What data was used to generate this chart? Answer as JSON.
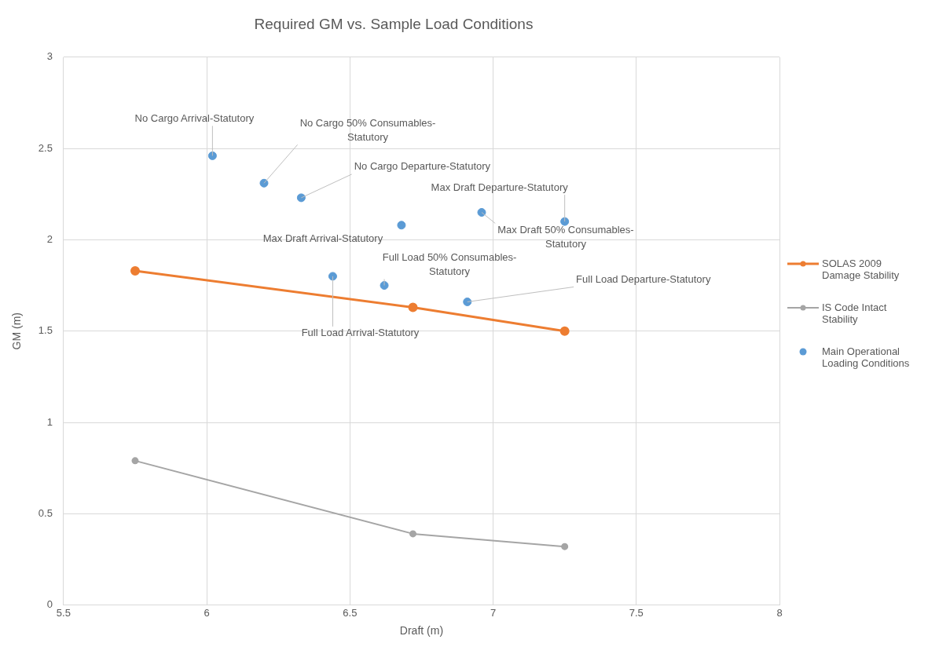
{
  "chart_data": {
    "type": "line",
    "title": "Required GM vs. Sample Load Conditions",
    "xlabel": "Draft (m)",
    "ylabel": "GM (m)",
    "xlim": [
      5.5,
      8
    ],
    "xticks": [
      5.5,
      6,
      6.5,
      7,
      7.5,
      8
    ],
    "ylim": [
      0,
      3
    ],
    "yticks": [
      0,
      0.5,
      1,
      1.5,
      2,
      2.5,
      3
    ],
    "grid": true,
    "legend": "right",
    "marker": "circle",
    "series": [
      {
        "name": "SOLAS 2009 Damage Stability",
        "color": "#ed7d31",
        "x": [
          5.75,
          6.72,
          7.25
        ],
        "values": [
          1.83,
          1.63,
          1.5
        ]
      },
      {
        "name": "IS Code Intact Stability",
        "color": "#a5a5a5",
        "x": [
          5.75,
          6.72,
          7.25
        ],
        "values": [
          0.79,
          0.39,
          0.32
        ]
      },
      {
        "name": "Main Operational Loading Conditions",
        "type": "scatter",
        "color": "#5b9bd5",
        "x": [
          6.02,
          6.2,
          6.33,
          6.68,
          6.44,
          6.62,
          6.96,
          7.25,
          6.91
        ],
        "values": [
          2.46,
          2.31,
          2.23,
          2.08,
          1.8,
          1.75,
          2.15,
          2.1,
          1.66
        ]
      }
    ],
    "annotations": [
      {
        "text": "No Cargo Arrival-Statutory",
        "x": 6.02,
        "y": 2.46
      },
      {
        "text": "No Cargo 50% Consumables-Statutory",
        "x": 6.2,
        "y": 2.31
      },
      {
        "text": "No Cargo Departure-Statutory",
        "x": 6.33,
        "y": 2.23
      },
      {
        "text": "Max Draft Arrival-Statutory",
        "x": 6.68,
        "y": 2.08
      },
      {
        "text": "Full Load Arrival-Statutory",
        "x": 6.44,
        "y": 1.8
      },
      {
        "text": "Full Load 50% Consumables-Statutory",
        "x": 6.62,
        "y": 1.75
      },
      {
        "text": "Max Draft 50% Consumables-Statutory",
        "x": 6.96,
        "y": 2.15
      },
      {
        "text": "Max Draft Departure-Statutory",
        "x": 7.25,
        "y": 2.1
      },
      {
        "text": "Full Load Departure-Statutory",
        "x": 6.91,
        "y": 1.66
      }
    ]
  }
}
